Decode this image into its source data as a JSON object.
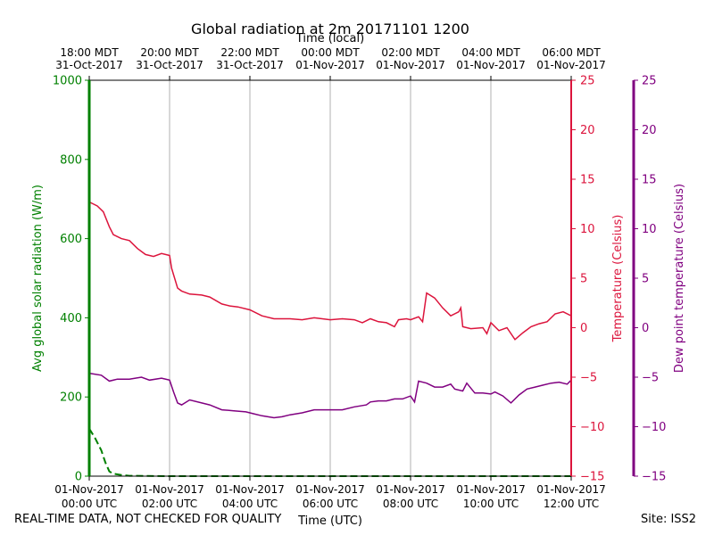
{
  "chart_data": {
    "type": "line",
    "title": "Global radiation at 2m 20171101 1200",
    "x_top_label": "Time (local)",
    "x_bottom_label": "Time (UTC)",
    "y_left_label": "Avg global solar radiation (W/m)",
    "y_right1_label": "Temperature (Celsius)",
    "y_right2_label": "Dew point temperature (Celsius)",
    "xlim_hours": [
      0,
      12
    ],
    "ylim_radiation": [
      0,
      1000
    ],
    "ylim_temperature": [
      -15,
      25
    ],
    "ylim_dewpoint": [
      -15,
      25
    ],
    "radiation_ticks": [
      "0",
      "200",
      "400",
      "600",
      "800",
      "1000"
    ],
    "temperature_ticks": [
      "25",
      "20",
      "15",
      "10",
      "5",
      "0",
      "−5",
      "−10",
      "−15"
    ],
    "dewpoint_ticks": [
      "25",
      "20",
      "15",
      "10",
      "5",
      "0",
      "−5",
      "−10",
      "−15"
    ],
    "bottom_ticks": [
      {
        "line1": "01-Nov-2017",
        "line2": "00:00 UTC"
      },
      {
        "line1": "01-Nov-2017",
        "line2": "02:00 UTC"
      },
      {
        "line1": "01-Nov-2017",
        "line2": "04:00 UTC"
      },
      {
        "line1": "01-Nov-2017",
        "line2": "06:00 UTC"
      },
      {
        "line1": "01-Nov-2017",
        "line2": "08:00 UTC"
      },
      {
        "line1": "01-Nov-2017",
        "line2": "10:00 UTC"
      },
      {
        "line1": "01-Nov-2017",
        "line2": "12:00 UTC"
      }
    ],
    "top_ticks": [
      {
        "line1": "18:00 MDT",
        "line2": "31-Oct-2017"
      },
      {
        "line1": "20:00 MDT",
        "line2": "31-Oct-2017"
      },
      {
        "line1": "22:00 MDT",
        "line2": "31-Oct-2017"
      },
      {
        "line1": "00:00 MDT",
        "line2": "01-Nov-2017"
      },
      {
        "line1": "02:00 MDT",
        "line2": "01-Nov-2017"
      },
      {
        "line1": "04:00 MDT",
        "line2": "01-Nov-2017"
      },
      {
        "line1": "06:00 MDT",
        "line2": "01-Nov-2017"
      }
    ],
    "series": [
      {
        "name": "Avg global solar radiation",
        "axis": "radiation",
        "color": "#008000",
        "style": "dashed",
        "x": [
          0,
          0.15,
          0.3,
          0.4,
          0.5,
          0.6,
          0.8,
          1.0,
          2.0,
          4.0,
          6.0,
          8.0,
          10.0,
          12.0
        ],
        "values": [
          120,
          95,
          65,
          35,
          12,
          6,
          3,
          1,
          0,
          0,
          0,
          0,
          0,
          0
        ]
      },
      {
        "name": "Temperature",
        "axis": "temperature",
        "color": "#dc143c",
        "style": "solid",
        "x": [
          0,
          0.2,
          0.35,
          0.5,
          0.6,
          0.8,
          1.0,
          1.2,
          1.4,
          1.6,
          1.8,
          2.0,
          2.05,
          2.2,
          2.3,
          2.5,
          2.8,
          3.0,
          3.3,
          3.5,
          3.7,
          4.0,
          4.3,
          4.6,
          5.0,
          5.3,
          5.6,
          6.0,
          6.3,
          6.6,
          6.8,
          7.0,
          7.2,
          7.4,
          7.6,
          7.7,
          7.9,
          8.0,
          8.2,
          8.3,
          8.4,
          8.6,
          8.8,
          9.0,
          9.2,
          9.25,
          9.3,
          9.5,
          9.8,
          9.9,
          10.0,
          10.2,
          10.4,
          10.6,
          10.8,
          11.0,
          11.2,
          11.4,
          11.6,
          11.8,
          12.0
        ],
        "values": [
          12.7,
          12.3,
          11.7,
          10.2,
          9.4,
          9.0,
          8.8,
          8.0,
          7.4,
          7.2,
          7.5,
          7.3,
          6.0,
          4.0,
          3.7,
          3.4,
          3.3,
          3.1,
          2.4,
          2.2,
          2.1,
          1.8,
          1.2,
          0.9,
          0.9,
          0.8,
          1.0,
          0.8,
          0.9,
          0.8,
          0.5,
          0.9,
          0.6,
          0.5,
          0.1,
          0.8,
          0.9,
          0.8,
          1.1,
          0.6,
          3.5,
          3.0,
          2.0,
          1.2,
          1.6,
          2.0,
          0.1,
          -0.1,
          0.0,
          -0.6,
          0.5,
          -0.3,
          0.0,
          -1.2,
          -0.5,
          0.1,
          0.4,
          0.6,
          1.4,
          1.6,
          1.2
        ]
      },
      {
        "name": "Dew point temperature",
        "axis": "dewpoint",
        "color": "#800080",
        "style": "solid",
        "x": [
          0,
          0.3,
          0.5,
          0.7,
          1.0,
          1.3,
          1.5,
          1.8,
          2.0,
          2.1,
          2.2,
          2.3,
          2.5,
          2.8,
          3.0,
          3.3,
          3.6,
          3.9,
          4.1,
          4.3,
          4.6,
          4.8,
          5.0,
          5.3,
          5.6,
          6.0,
          6.3,
          6.6,
          6.9,
          7.0,
          7.2,
          7.4,
          7.6,
          7.8,
          8.0,
          8.1,
          8.2,
          8.4,
          8.6,
          8.8,
          9.0,
          9.1,
          9.3,
          9.4,
          9.6,
          9.8,
          10.0,
          10.1,
          10.3,
          10.5,
          10.7,
          10.9,
          11.1,
          11.3,
          11.5,
          11.7,
          11.9,
          12.0
        ],
        "values": [
          -4.6,
          -4.8,
          -5.4,
          -5.2,
          -5.2,
          -5.0,
          -5.3,
          -5.1,
          -5.3,
          -6.5,
          -7.6,
          -7.8,
          -7.3,
          -7.6,
          -7.8,
          -8.3,
          -8.4,
          -8.5,
          -8.7,
          -8.9,
          -9.1,
          -9.0,
          -8.8,
          -8.6,
          -8.3,
          -8.3,
          -8.3,
          -8.0,
          -7.8,
          -7.5,
          -7.4,
          -7.4,
          -7.2,
          -7.2,
          -6.9,
          -7.5,
          -5.4,
          -5.6,
          -6.0,
          -6.0,
          -5.7,
          -6.2,
          -6.4,
          -5.6,
          -6.6,
          -6.6,
          -6.7,
          -6.5,
          -6.9,
          -7.6,
          -6.8,
          -6.2,
          -6.0,
          -5.8,
          -5.6,
          -5.5,
          -5.7,
          -5.3
        ]
      }
    ]
  },
  "footer": {
    "disclaimer": "REAL-TIME DATA, NOT CHECKED FOR QUALITY",
    "site": "Site: ISS2"
  }
}
